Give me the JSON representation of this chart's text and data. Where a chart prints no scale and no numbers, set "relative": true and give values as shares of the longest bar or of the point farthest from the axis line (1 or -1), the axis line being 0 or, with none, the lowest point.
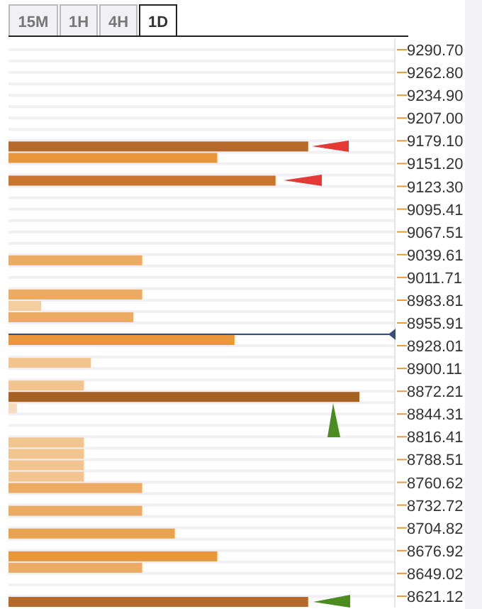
{
  "chart_data": {
    "type": "bar",
    "orientation": "horizontal",
    "relative": true,
    "x": [
      9172.13,
      9158.18,
      9130.28,
      9032.63,
      8990.79,
      8976.84,
      8962.89,
      8934.99,
      8907.09,
      8879.19,
      8865.24,
      8851.29,
      8809.44,
      8795.49,
      8781.54,
      8767.6,
      8753.65,
      8725.75,
      8697.85,
      8669.95,
      8656,
      8614.15
    ],
    "values": [
      0.854,
      0.595,
      0.761,
      0.381,
      0.381,
      0.093,
      0.356,
      0.644,
      0.235,
      0.215,
      1,
      0.024,
      0.215,
      0.215,
      0.215,
      0.215,
      0.381,
      0.381,
      0.474,
      0.595,
      0.381,
      0.854
    ],
    "colors": [
      "#b5692b",
      "#e8973a",
      "#c97530",
      "#ecab62",
      "#ecab62",
      "#f3cfa0",
      "#ecab62",
      "#e8973a",
      "#f2c48f",
      "#f2c48f",
      "#a66224",
      "#f8dcc0",
      "#f2c48f",
      "#f2c48f",
      "#f2c48f",
      "#f2c48f",
      "#ecab62",
      "#ecab62",
      "#e8a350",
      "#e8973a",
      "#ecab62",
      "#b5692b"
    ],
    "ylim": [
      8607.15,
      9304.65
    ],
    "yticks": [
      {
        "value": 9290.7,
        "label": "9290.70"
      },
      {
        "value": 9262.8,
        "label": "9262.80"
      },
      {
        "value": 9234.9,
        "label": "9234.90"
      },
      {
        "value": 9207,
        "label": "9207.00"
      },
      {
        "value": 9179.1,
        "label": "9179.10"
      },
      {
        "value": 9151.2,
        "label": "9151.20"
      },
      {
        "value": 9123.3,
        "label": "9123.30"
      },
      9095.41,
      9067.51,
      9039.61,
      9011.71,
      8983.81,
      8955.91,
      8928.01,
      8900.11,
      8872.21,
      8844.31,
      8816.41,
      8788.51,
      8760.62,
      8732.72,
      8704.82,
      8676.92,
      8649.02,
      8621.12
    ],
    "grid": "y",
    "ref_lines": [
      {
        "axis": "y",
        "value": 8942,
        "color": "#34507a"
      }
    ],
    "annotations": [
      "15M",
      "1H",
      "4H",
      "1D"
    ]
  }
}
